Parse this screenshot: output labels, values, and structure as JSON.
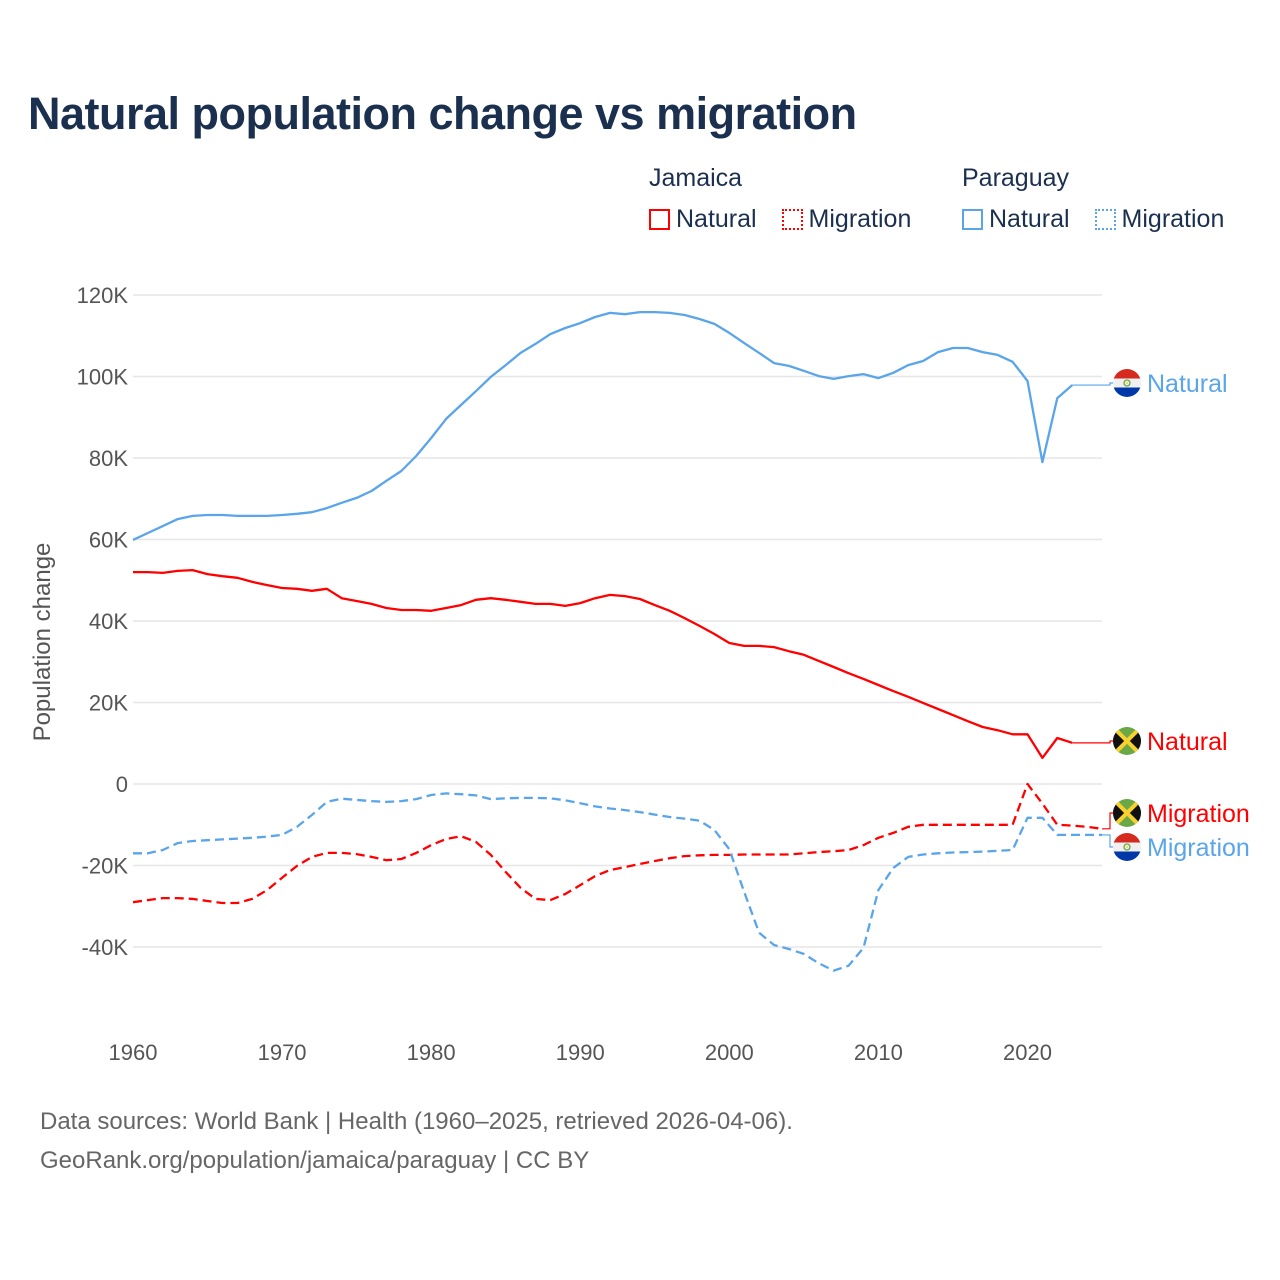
{
  "chart_data": {
    "type": "line",
    "title": "Natural population change vs migration",
    "xlabel": "",
    "ylabel": "Population change",
    "xlim": [
      1960,
      2025
    ],
    "ylim": [
      -50000,
      120000
    ],
    "y_ticks": [
      120000,
      100000,
      80000,
      60000,
      40000,
      20000,
      0,
      -20000,
      -40000
    ],
    "y_tick_labels": [
      "120K",
      "100K",
      "80K",
      "60K",
      "40K",
      "20K",
      "0",
      "-20K",
      "-40K"
    ],
    "x_ticks": [
      1960,
      1970,
      1980,
      1990,
      2000,
      2010,
      2020
    ],
    "x_tick_labels": [
      "1960",
      "1970",
      "1980",
      "1990",
      "2000",
      "2010",
      "2020"
    ],
    "grid": true,
    "legend": {
      "placement": "top-right",
      "groups": [
        {
          "name": "Jamaica",
          "items": [
            "Natural",
            "Migration"
          ]
        },
        {
          "name": "Paraguay",
          "items": [
            "Natural",
            "Migration"
          ]
        }
      ]
    },
    "series": [
      {
        "name": "Paraguay Natural",
        "country": "Paraguay",
        "kind": "Natural",
        "label": "Natural",
        "color": "#5aa5ea",
        "dashed": false,
        "start_year": 1960,
        "values": [
          59900,
          61600,
          63300,
          65000,
          65800,
          66000,
          66000,
          65800,
          65800,
          65800,
          66000,
          66300,
          66700,
          67700,
          69000,
          70200,
          71900,
          74400,
          76800,
          80500,
          84900,
          89600,
          93000,
          96400,
          99900,
          102800,
          105800,
          108000,
          110400,
          111900,
          113100,
          114600,
          115600,
          115300,
          115800,
          115800,
          115600,
          115100,
          114100,
          112900,
          110700,
          108200,
          105800,
          103300,
          102600,
          101400,
          100100,
          99400,
          100100,
          100600,
          99600,
          100900,
          102800,
          103800,
          106000,
          107000,
          107000,
          106000,
          105300,
          103600,
          98900,
          79000,
          94700,
          97900
        ]
      },
      {
        "name": "Jamaica Natural",
        "country": "Jamaica",
        "kind": "Natural",
        "label": "Natural",
        "color": "#ff0000",
        "dashed": false,
        "start_year": 1960,
        "values": [
          52000,
          52000,
          51800,
          52300,
          52500,
          51500,
          51000,
          50600,
          49600,
          48800,
          48100,
          47900,
          47400,
          47900,
          45600,
          44900,
          44200,
          43200,
          42700,
          42700,
          42500,
          43200,
          43900,
          45200,
          45600,
          45200,
          44700,
          44200,
          44200,
          43700,
          44400,
          45600,
          46400,
          46100,
          45400,
          43900,
          42500,
          40700,
          38800,
          36800,
          34600,
          33900,
          33900,
          33600,
          32600,
          31700,
          30200,
          28700,
          27200,
          25800,
          24300,
          22800,
          21400,
          19900,
          18400,
          16900,
          15400,
          14000,
          13200,
          12200,
          12200,
          6400,
          11300,
          10100
        ]
      },
      {
        "name": "Jamaica Migration",
        "country": "Jamaica",
        "kind": "Migration",
        "label": "Migration",
        "color": "#ff0000",
        "dashed": true,
        "start_year": 1960,
        "values": [
          -29000,
          -28500,
          -28000,
          -28000,
          -28200,
          -28700,
          -29200,
          -29200,
          -28200,
          -26000,
          -23000,
          -20100,
          -17900,
          -16900,
          -16900,
          -17200,
          -17900,
          -18700,
          -18400,
          -16900,
          -15000,
          -13500,
          -12800,
          -14200,
          -17400,
          -21600,
          -25500,
          -28200,
          -28500,
          -27000,
          -24800,
          -22600,
          -21100,
          -20400,
          -19600,
          -18900,
          -18200,
          -17700,
          -17500,
          -17400,
          -17400,
          -17300,
          -17300,
          -17300,
          -17300,
          -17000,
          -16700,
          -16500,
          -16200,
          -15000,
          -13200,
          -12000,
          -10500,
          -10000,
          -10000,
          -10000,
          -10000,
          -10000,
          -10000,
          -10000,
          0,
          -4800,
          -10000,
          -10200,
          -10500,
          -11000
        ]
      },
      {
        "name": "Paraguay Migration",
        "country": "Paraguay",
        "kind": "Migration",
        "label": "Migration",
        "color": "#5aa5ea",
        "dashed": true,
        "start_year": 1960,
        "values": [
          -17000,
          -17000,
          -16200,
          -14500,
          -14000,
          -13800,
          -13600,
          -13400,
          -13200,
          -12900,
          -12500,
          -10500,
          -7600,
          -4400,
          -3600,
          -3900,
          -4200,
          -4400,
          -4200,
          -3700,
          -2700,
          -2300,
          -2500,
          -2800,
          -3700,
          -3500,
          -3400,
          -3400,
          -3500,
          -4000,
          -4700,
          -5500,
          -6000,
          -6400,
          -6900,
          -7500,
          -8100,
          -8500,
          -9000,
          -11300,
          -16000,
          -26500,
          -36500,
          -39500,
          -40500,
          -41700,
          -44000,
          -45800,
          -44600,
          -40200,
          -26000,
          -20600,
          -17900,
          -17300,
          -17000,
          -16800,
          -16700,
          -16600,
          -16400,
          -16200,
          -8300,
          -8300,
          -12500,
          -12500,
          -12500,
          -12500
        ]
      }
    ]
  },
  "footer": {
    "line1": "Data sources: World Bank | Health (1960–2025, retrieved 2026-04-06).",
    "line2": "GeoRank.org/population/jamaica/paraguay | CC BY"
  }
}
